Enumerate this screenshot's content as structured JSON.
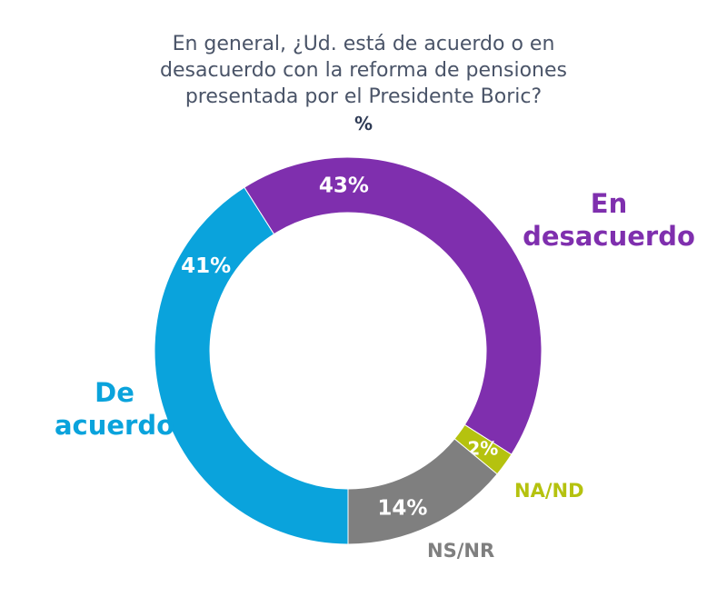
{
  "chart_data": {
    "type": "pie",
    "variant": "donut",
    "title": "En general, ¿Ud. está de acuerdo o en desacuerdo con la reforma de pensiones presentada por el Presidente Boric?",
    "title_lines": [
      "En general, ¿Ud. está de acuerdo o en",
      "desacuerdo con la reforma de pensiones",
      "presentada por el Presidente Boric?"
    ],
    "unit": "%",
    "slices": [
      {
        "label": "De acuerdo",
        "label_lines": [
          "De",
          "acuerdo"
        ],
        "value": 41,
        "value_label": "41%",
        "color": "#0aa3dc"
      },
      {
        "label": "En desacuerdo",
        "label_lines": [
          "En",
          "desacuerdo"
        ],
        "value": 43,
        "value_label": "43%",
        "color": "#7f2fae"
      },
      {
        "label": "NA/ND",
        "label_lines": [
          "NA/ND"
        ],
        "value": 2,
        "value_label": "2%",
        "color": "#b5c20f"
      },
      {
        "label": "NS/NR",
        "label_lines": [
          "NS/NR"
        ],
        "value": 14,
        "value_label": "14%",
        "color": "#7f7f7f"
      }
    ]
  }
}
